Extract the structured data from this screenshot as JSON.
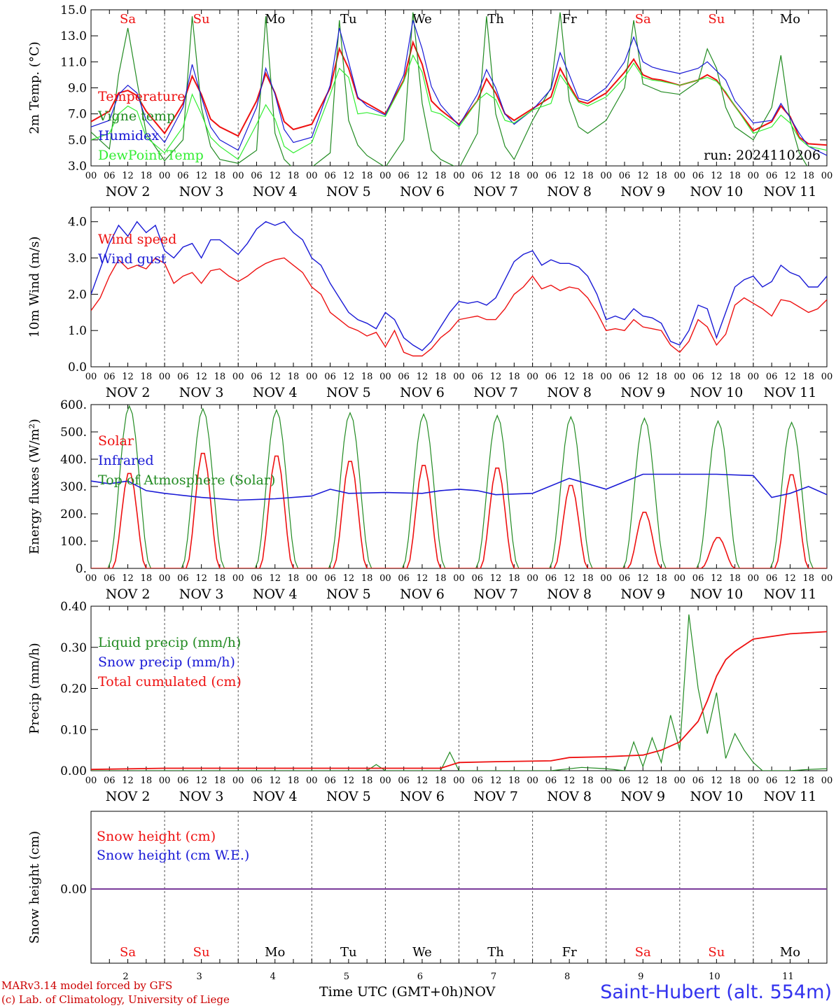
{
  "chart_data": [
    {
      "type": "line",
      "ylabel": "2m Temp. (°C)",
      "ylim": [
        3.0,
        15.0
      ],
      "yticks": [
        "3.0",
        "5.0",
        "7.0",
        "9.0",
        "11.0",
        "13.0",
        "15.0"
      ],
      "run_label": "run: 2024110206",
      "x_hours": [
        0,
        6,
        9,
        12,
        15,
        18,
        24,
        30,
        33,
        36,
        39,
        42,
        48,
        54,
        57,
        60,
        63,
        66,
        72,
        78,
        81,
        84,
        87,
        90,
        96,
        102,
        105,
        108,
        111,
        114,
        120,
        126,
        129,
        132,
        135,
        138,
        144,
        150,
        153,
        156,
        159,
        162,
        168,
        174,
        177,
        180,
        183,
        186,
        192,
        198,
        201,
        204,
        207,
        210,
        216,
        222,
        225,
        228,
        231,
        234,
        240
      ],
      "series": [
        {
          "name": "Temperature",
          "color": "#ee1111",
          "values": [
            6.4,
            7.2,
            8.6,
            8.8,
            8.4,
            7.2,
            5.5,
            7.8,
            9.9,
            8.5,
            6.6,
            6.0,
            5.3,
            8.0,
            10.1,
            8.6,
            6.4,
            5.8,
            6.2,
            9.0,
            12.0,
            10.5,
            8.2,
            7.8,
            7.0,
            9.6,
            12.5,
            10.8,
            8.0,
            7.3,
            6.2,
            8.0,
            9.7,
            8.6,
            7.0,
            6.5,
            7.4,
            8.3,
            10.5,
            9.2,
            8.0,
            7.8,
            8.6,
            10.2,
            11.2,
            10.0,
            9.7,
            9.6,
            9.2,
            9.6,
            10.0,
            9.6,
            8.6,
            7.6,
            5.7,
            6.4,
            7.6,
            6.8,
            5.2,
            4.7,
            4.6
          ]
        },
        {
          "name": "Vigne temp",
          "color": "#228b22",
          "values": [
            5.6,
            4.3,
            10.0,
            13.6,
            9.5,
            5.5,
            3.4,
            5.0,
            14.5,
            7.5,
            4.5,
            3.5,
            3.2,
            4.2,
            14.5,
            5.5,
            3.5,
            2.8,
            2.9,
            4.0,
            14.2,
            6.5,
            4.6,
            3.8,
            2.9,
            5.0,
            14.8,
            7.8,
            4.2,
            3.5,
            2.8,
            5.5,
            14.5,
            7.0,
            4.5,
            3.5,
            6.5,
            9.0,
            14.8,
            8.0,
            6.0,
            5.5,
            6.5,
            9.0,
            14.2,
            9.3,
            9.0,
            8.7,
            8.5,
            9.5,
            12.0,
            10.5,
            7.5,
            6.0,
            5.0,
            7.5,
            11.5,
            6.5,
            4.0,
            2.8,
            2.8
          ]
        },
        {
          "name": "Humidex",
          "color": "#1a1ad6",
          "values": [
            6.0,
            6.5,
            8.5,
            9.2,
            8.6,
            6.5,
            4.8,
            7.5,
            10.8,
            8.3,
            6.0,
            5.0,
            4.2,
            7.5,
            10.5,
            8.5,
            5.8,
            4.8,
            5.2,
            9.2,
            13.6,
            11.0,
            8.3,
            7.6,
            6.9,
            10.0,
            14.2,
            12.0,
            9.1,
            7.7,
            6.1,
            8.5,
            10.4,
            9.0,
            7.0,
            6.2,
            7.3,
            8.9,
            11.7,
            10.0,
            8.2,
            8.0,
            9.0,
            11.0,
            12.9,
            11.0,
            10.6,
            10.4,
            10.1,
            10.5,
            11.0,
            10.3,
            9.6,
            8.0,
            6.3,
            6.5,
            7.8,
            6.7,
            5.5,
            4.5,
            3.8
          ]
        },
        {
          "name": "DewPoint Temp",
          "color": "#33ee33",
          "values": [
            5.0,
            5.5,
            7.0,
            7.6,
            7.2,
            5.2,
            4.0,
            6.0,
            8.5,
            7.0,
            5.2,
            4.5,
            3.5,
            6.2,
            7.7,
            6.6,
            4.5,
            4.0,
            4.8,
            8.5,
            10.5,
            9.8,
            7.0,
            7.1,
            6.8,
            9.5,
            11.5,
            10.2,
            7.2,
            7.0,
            6.0,
            8.0,
            8.6,
            8.1,
            6.5,
            6.3,
            7.3,
            7.8,
            10.0,
            9.0,
            7.9,
            7.6,
            8.3,
            9.8,
            10.9,
            9.8,
            9.6,
            9.5,
            9.2,
            9.6,
            9.8,
            9.5,
            8.7,
            7.6,
            5.5,
            6.0,
            6.9,
            6.3,
            5.1,
            4.5,
            4.2
          ]
        }
      ]
    },
    {
      "type": "line",
      "ylabel": "10m Wind (m/s)",
      "ylim": [
        0.0,
        4.4
      ],
      "yticks": [
        "0.0",
        "1.0",
        "2.0",
        "3.0",
        "4.0"
      ],
      "x_hours": [
        0,
        3,
        6,
        9,
        12,
        15,
        18,
        21,
        24,
        27,
        30,
        33,
        36,
        39,
        42,
        45,
        48,
        51,
        54,
        57,
        60,
        63,
        66,
        69,
        72,
        75,
        78,
        81,
        84,
        87,
        90,
        93,
        96,
        99,
        102,
        105,
        108,
        111,
        114,
        117,
        120,
        123,
        126,
        129,
        132,
        135,
        138,
        141,
        144,
        147,
        150,
        153,
        156,
        159,
        162,
        165,
        168,
        171,
        174,
        177,
        180,
        183,
        186,
        189,
        192,
        195,
        198,
        201,
        204,
        207,
        210,
        213,
        216,
        219,
        222,
        225,
        228,
        231,
        234,
        237,
        240
      ],
      "series": [
        {
          "name": "Wind speed",
          "color": "#ee1111",
          "values": [
            1.55,
            1.9,
            2.5,
            2.95,
            2.7,
            2.8,
            2.7,
            3.0,
            2.85,
            2.3,
            2.5,
            2.6,
            2.3,
            2.65,
            2.7,
            2.5,
            2.35,
            2.5,
            2.7,
            2.85,
            2.95,
            3.0,
            2.8,
            2.6,
            2.2,
            2.0,
            1.5,
            1.3,
            1.1,
            1.0,
            0.85,
            0.95,
            0.55,
            1.0,
            0.4,
            0.3,
            0.3,
            0.5,
            0.8,
            1.0,
            1.3,
            1.35,
            1.4,
            1.3,
            1.3,
            1.6,
            2.0,
            2.2,
            2.5,
            2.15,
            2.25,
            2.1,
            2.2,
            2.15,
            1.9,
            1.5,
            1.0,
            1.05,
            1.0,
            1.3,
            1.1,
            1.05,
            1.0,
            0.6,
            0.4,
            0.7,
            1.3,
            1.1,
            0.6,
            0.9,
            1.7,
            1.9,
            1.75,
            1.6,
            1.4,
            1.85,
            1.8,
            1.65,
            1.5,
            1.6,
            1.85
          ]
        },
        {
          "name": "Wind gust",
          "color": "#1a1ad6",
          "values": [
            2.0,
            2.7,
            3.4,
            3.9,
            3.6,
            4.0,
            3.7,
            3.9,
            3.2,
            3.0,
            3.3,
            3.4,
            3.0,
            3.5,
            3.5,
            3.3,
            3.1,
            3.4,
            3.8,
            4.0,
            3.9,
            4.0,
            3.7,
            3.5,
            3.0,
            2.8,
            2.3,
            1.9,
            1.5,
            1.3,
            1.2,
            1.05,
            1.5,
            1.3,
            0.8,
            0.6,
            0.45,
            0.7,
            1.1,
            1.5,
            1.8,
            1.75,
            1.8,
            1.7,
            1.9,
            2.4,
            2.9,
            3.1,
            3.2,
            2.8,
            2.95,
            2.85,
            2.85,
            2.75,
            2.5,
            2.0,
            1.3,
            1.4,
            1.3,
            1.6,
            1.4,
            1.35,
            1.2,
            0.7,
            0.6,
            1.0,
            1.7,
            1.6,
            0.8,
            1.5,
            2.2,
            2.4,
            2.5,
            2.2,
            2.35,
            2.8,
            2.6,
            2.5,
            2.2,
            2.2,
            2.5
          ]
        }
      ]
    },
    {
      "type": "line",
      "ylabel": "Energy fluxes (W/m²)",
      "ylim": [
        0,
        600
      ],
      "yticks": [
        "0.",
        "100.",
        "200.",
        "300.",
        "400.",
        "500.",
        "600."
      ],
      "solar_peaks": [
        355,
        430,
        420,
        400,
        385,
        375,
        310,
        210,
        115,
        350
      ],
      "toa_peaks": [
        595,
        585,
        580,
        570,
        565,
        560,
        555,
        550,
        540,
        535
      ],
      "infrared_x_hours": [
        0,
        6,
        12,
        18,
        24,
        36,
        48,
        60,
        72,
        78,
        84,
        96,
        108,
        114,
        120,
        126,
        132,
        144,
        156,
        168,
        180,
        192,
        204,
        216,
        222,
        228,
        234,
        240
      ],
      "series": [
        {
          "name": "Solar",
          "color": "#ee1111"
        },
        {
          "name": "Infrared",
          "color": "#1a1ad6",
          "values": [
            320,
            310,
            320,
            285,
            275,
            260,
            250,
            255,
            265,
            290,
            275,
            278,
            275,
            285,
            290,
            285,
            270,
            275,
            330,
            290,
            345,
            345,
            345,
            340,
            260,
            275,
            300,
            270
          ]
        },
        {
          "name": "Top of Atmosphere (Solar)",
          "color": "#228b22"
        }
      ]
    },
    {
      "type": "line",
      "ylabel": "Precip (mm/h)",
      "ylim": [
        0.0,
        0.4
      ],
      "yticks": [
        "0.00",
        "0.10",
        "0.20",
        "0.30",
        "0.40"
      ],
      "liquid_x_hours": [
        0,
        90,
        93,
        96,
        99,
        102,
        114,
        117,
        120,
        123,
        126,
        150,
        160,
        168,
        174,
        177,
        180,
        183,
        186,
        189,
        192,
        195,
        198,
        201,
        204,
        207,
        210,
        213,
        216,
        219,
        222,
        228,
        234,
        240
      ],
      "total_x_hours": [
        0,
        24,
        48,
        72,
        96,
        114,
        120,
        132,
        150,
        156,
        168,
        180,
        186,
        192,
        198,
        201,
        204,
        207,
        210,
        216,
        228,
        240
      ],
      "series": [
        {
          "name": "Liquid precip (mm/h)",
          "color": "#228b22",
          "values": [
            0.0,
            0.0,
            0.015,
            0.0,
            0.0,
            0.0,
            0.0,
            0.045,
            0.0,
            0.0,
            0.0,
            0.0,
            0.008,
            0.005,
            0.0,
            0.07,
            0.01,
            0.08,
            0.02,
            0.135,
            0.05,
            0.38,
            0.2,
            0.09,
            0.19,
            0.03,
            0.09,
            0.05,
            0.02,
            0.0,
            0.0,
            0.0,
            0.003,
            0.005
          ]
        },
        {
          "name": "Snow precip (mm/h)",
          "color": "#1a1ad6",
          "values": []
        },
        {
          "name": "Total cumulated (cm)",
          "color": "#ee1111",
          "values": [
            0.003,
            0.006,
            0.006,
            0.006,
            0.006,
            0.006,
            0.02,
            0.022,
            0.024,
            0.032,
            0.034,
            0.038,
            0.05,
            0.07,
            0.12,
            0.17,
            0.23,
            0.27,
            0.29,
            0.32,
            0.333,
            0.338
          ]
        }
      ]
    },
    {
      "type": "line",
      "ylabel": "Snow height (cm)",
      "yticks": [
        "0.00"
      ],
      "series": [
        {
          "name": "Snow height (cm)",
          "color": "#ee1111",
          "values": [
            0.0,
            0.0
          ]
        },
        {
          "name": "Snow height (cm W.E.)",
          "color": "#1a1ad6",
          "values": [
            0.0,
            0.0
          ]
        }
      ]
    }
  ],
  "day_abbrevs": [
    {
      "label": "Sa",
      "color": "#ee1111"
    },
    {
      "label": "Su",
      "color": "#ee1111"
    },
    {
      "label": "Mo",
      "color": "#000000"
    },
    {
      "label": "Tu",
      "color": "#000000"
    },
    {
      "label": "We",
      "color": "#000000"
    },
    {
      "label": "Th",
      "color": "#000000"
    },
    {
      "label": "Fr",
      "color": "#000000"
    },
    {
      "label": "Sa",
      "color": "#ee1111"
    },
    {
      "label": "Su",
      "color": "#ee1111"
    },
    {
      "label": "Mo",
      "color": "#000000"
    }
  ],
  "hour_ticks": [
    "00",
    "06",
    "12",
    "18"
  ],
  "final_hour_tick": "00",
  "date_labels": [
    "NOV  2",
    "NOV  3",
    "NOV  4",
    "NOV  5",
    "NOV  6",
    "NOV  7",
    "NOV  8",
    "NOV  9",
    "NOV 10",
    "NOV 11"
  ],
  "bottom_day_numbers": [
    "2",
    "3",
    "4",
    "5",
    "6",
    "7",
    "8",
    "9",
    "10",
    "11"
  ],
  "bottom": {
    "time_axis_label": "Time UTC (GMT+0h)",
    "month_label": "NOV",
    "credit_line1": "MARv3.14 model forced by GFS",
    "credit_line2": "(c) Lab. of Climatology, University of Liege",
    "station": "Saint-Hubert (alt. 554m)"
  },
  "colors": {
    "red": "#ee1111",
    "blue": "#1a1ad6",
    "green": "#228b22",
    "lightgreen": "#33ee33",
    "snow_line": "#7a3b9a"
  }
}
